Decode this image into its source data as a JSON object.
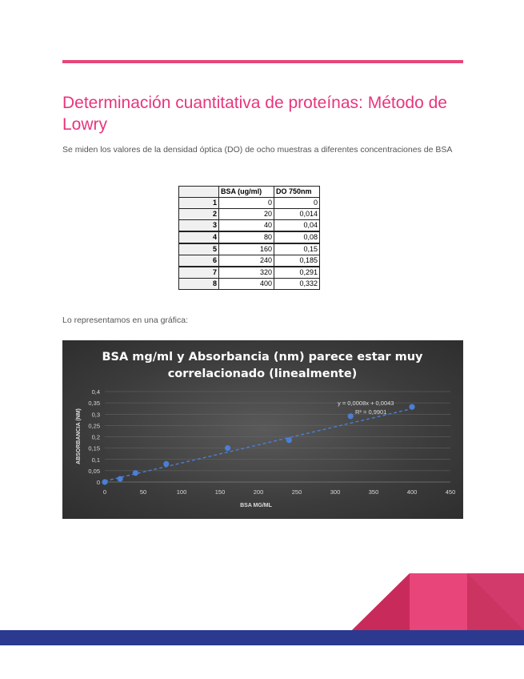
{
  "page": {
    "title": "Determinación cuantitativa de proteínas: Método de Lowry",
    "intro": "Se miden los valores de la densidad óptica (DO) de ocho muestras a diferentes concentraciones de BSA",
    "represent_text": "Lo representamos en una gráfica:"
  },
  "table": {
    "headers": [
      "",
      "BSA (ug/ml)",
      "DO 750nm"
    ],
    "rows": [
      {
        "n": "1",
        "bsa": "0",
        "do": "0"
      },
      {
        "n": "2",
        "bsa": "20",
        "do": "0,014"
      },
      {
        "n": "3",
        "bsa": "40",
        "do": "0,04"
      },
      {
        "n": "4",
        "bsa": "80",
        "do": "0,08"
      },
      {
        "n": "5",
        "bsa": "160",
        "do": "0,15"
      },
      {
        "n": "6",
        "bsa": "240",
        "do": "0,185"
      },
      {
        "n": "7",
        "bsa": "320",
        "do": "0,291"
      },
      {
        "n": "8",
        "bsa": "400",
        "do": "0,332"
      }
    ]
  },
  "colors": {
    "accent": "#e8357e",
    "chart_point": "#4a7fd4",
    "trendline": "#4a7fd4",
    "band": "#2b3a8f"
  },
  "chart_data": {
    "type": "scatter",
    "title_lines": [
      "BSA mg/ml y Absorbancia (nm) parece estar muy",
      "correlacionado (linealmente)"
    ],
    "xlabel": "BSA MG/ML",
    "ylabel": "ABSORBANCIA (NM)",
    "xlim": [
      0,
      450
    ],
    "ylim": [
      0,
      0.4
    ],
    "x_ticks": [
      "0",
      "50",
      "100",
      "150",
      "200",
      "250",
      "300",
      "350",
      "400",
      "450"
    ],
    "y_ticks": [
      "0",
      "0,05",
      "0,1",
      "0,15",
      "0,2",
      "0,25",
      "0,3",
      "0,35",
      "0,4"
    ],
    "grid": true,
    "series": [
      {
        "x": [
          0,
          20,
          40,
          80,
          160,
          240,
          320,
          400
        ],
        "y": [
          0,
          0.014,
          0.04,
          0.08,
          0.15,
          0.185,
          0.291,
          0.332
        ]
      }
    ],
    "trendline": {
      "slope": 0.0008,
      "intercept": 0.0043
    },
    "equation": "y = 0,0008x + 0,0043",
    "r2": "R² = 0,9901"
  }
}
